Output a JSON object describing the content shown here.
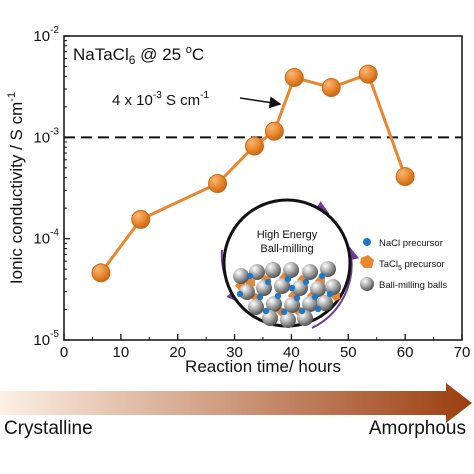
{
  "chart_data": {
    "type": "line",
    "title": "NaTaCl6 @ 25 °C",
    "title_parts": {
      "compound": "NaTaCl",
      "sub": "6",
      "condition": " @ 25 ",
      "degree": "o",
      "unit": "C"
    },
    "xlabel": "Reaction time/ hours",
    "ylabel": "Ionic conductivity / S cm",
    "ylabel_sup": "-1",
    "xlim": [
      0,
      70
    ],
    "ylim": [
      1e-05,
      0.01
    ],
    "yscale": "log",
    "xticks": [
      "0",
      "10",
      "20",
      "30",
      "40",
      "50",
      "60",
      "70"
    ],
    "yticks": [
      {
        "base": "10",
        "exp": "-5",
        "value": 1e-05
      },
      {
        "base": "10",
        "exp": "-4",
        "value": 0.0001
      },
      {
        "base": "10",
        "exp": "-3",
        "value": 0.001
      },
      {
        "base": "10",
        "exp": "-2",
        "value": 0.01
      }
    ],
    "series": [
      {
        "color": "#e8872d",
        "x": [
          6.5,
          13.5,
          27,
          33.5,
          37,
          40.5,
          47,
          53.5,
          60
        ],
        "y": [
          4.6e-05,
          0.000155,
          0.00035,
          0.00082,
          0.00115,
          0.0039,
          0.0031,
          0.0042,
          0.00041
        ]
      }
    ],
    "reference_line": {
      "y": 0.001,
      "style": "dashed"
    },
    "annotation": {
      "base": "4 x 10",
      "exp": "-3",
      "unit": " S cm",
      "unit_exp": "-1",
      "x": 40.5,
      "y": 0.0039
    },
    "inset": {
      "label_line1": "High Energy",
      "label_line2": "Ball-milling",
      "legend": [
        {
          "label": "NaCl precursor",
          "color": "#1f78c8",
          "shape": "dot"
        },
        {
          "label_main": "TaCl",
          "label_sub": "5",
          "label_rest": " precursor",
          "color": "#e8872d",
          "shape": "polygon"
        },
        {
          "label": "Ball-milling balls",
          "color": "#9a9a9a",
          "shape": "ball"
        }
      ]
    }
  },
  "bottom_bar": {
    "left_label": "Crystalline",
    "right_label": "Amorphous",
    "gradient_start": "#fdf0e6",
    "gradient_end": "#9b3e0e"
  },
  "colors": {
    "marker": "#e8872d",
    "marker_edge": "#c96a1b",
    "arrow_purple": "#6a3d9a",
    "nacl_blue": "#1f78c8"
  }
}
